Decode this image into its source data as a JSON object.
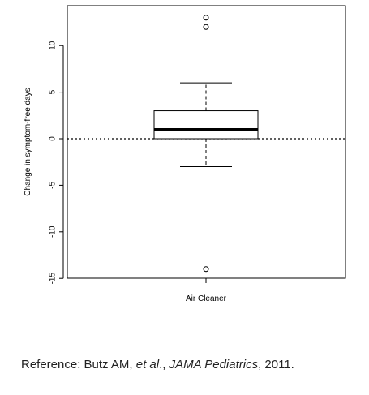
{
  "chart_data": {
    "type": "box",
    "ylabel": "Change in symptom-free days",
    "ylim": [
      -15,
      14
    ],
    "yticks": [
      -15,
      -10,
      -5,
      0,
      5,
      10
    ],
    "reference_line": 0,
    "categories": [
      "Air Cleaner"
    ],
    "box": {
      "whisker_low": -3,
      "q1": 0,
      "median": 1,
      "q3": 3,
      "whisker_high": 6,
      "outliers": [
        13,
        12,
        -14
      ]
    }
  },
  "reference": {
    "prefix": "Reference: Butz AM, ",
    "authors_suffix": "et al",
    "sep": "., ",
    "journal": "JAMA Pediatrics",
    "year": ", 2011."
  }
}
